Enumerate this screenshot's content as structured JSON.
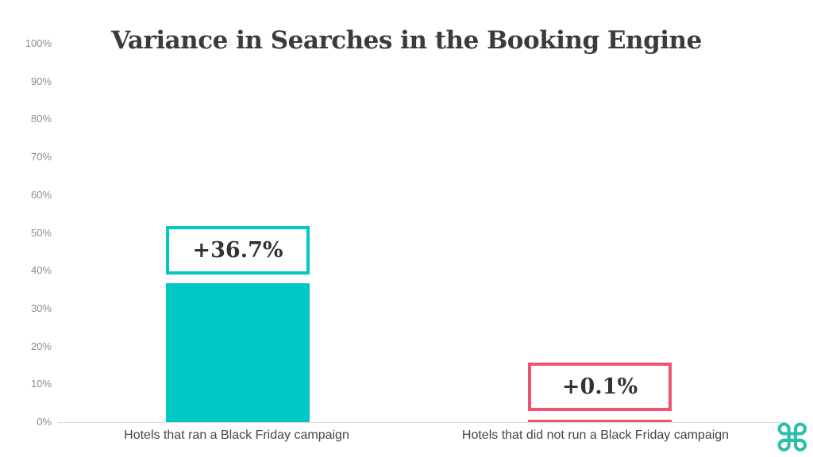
{
  "chart_data": {
    "type": "bar",
    "title": "Variance in Searches in the Booking Engine",
    "categories": [
      "Hotels that ran a Black Friday campaign",
      "Hotels that did not run a Black Friday campaign"
    ],
    "values": [
      36.7,
      0.1
    ],
    "value_labels": [
      "+36.7%",
      "+0.1%"
    ],
    "bar_colors": [
      "#00c8c6",
      "#ee5470"
    ],
    "xlabel": "",
    "ylabel": "",
    "ylim": [
      0,
      100
    ],
    "yticks": [
      "0%",
      "10%",
      "20%",
      "30%",
      "40%",
      "50%",
      "60%",
      "70%",
      "80%",
      "90%",
      "100%"
    ],
    "grid": false,
    "legend": false,
    "annotation_style": "value in outlined box above each bar"
  },
  "brand": {
    "glyph": "⌘",
    "name": "command-symbol-logo",
    "color": "#2cbdad"
  },
  "page": {
    "background": "#ffffff",
    "axis_line_color": "#dcdcdc",
    "title_color": "#3b3b3b",
    "tick_color": "#8c8c8c",
    "category_label_color": "#454545"
  }
}
